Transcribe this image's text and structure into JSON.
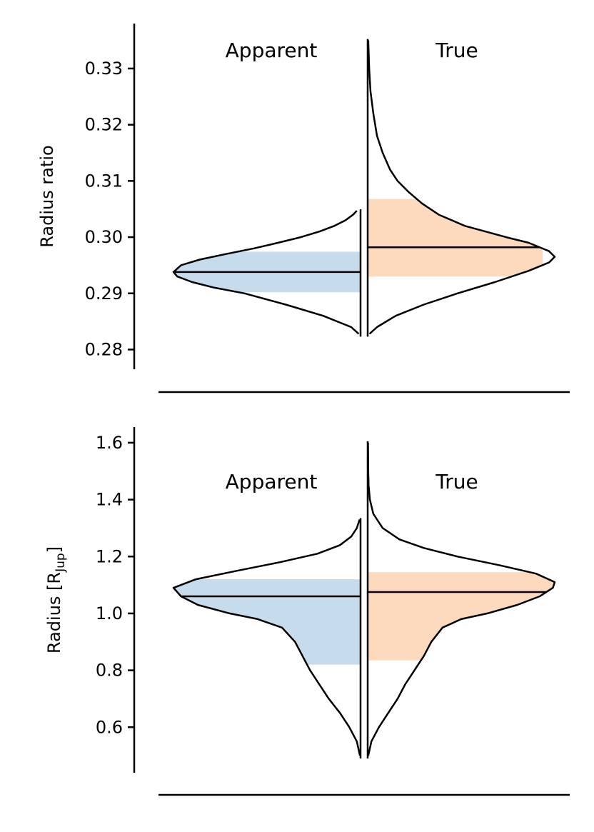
{
  "chart_data": [
    {
      "type": "violin",
      "ylabel": "Radius ratio",
      "ylim": [
        0.2765,
        0.338
      ],
      "yticks": [
        0.28,
        0.29,
        0.3,
        0.31,
        0.32,
        0.33
      ],
      "ytick_labels": [
        "0.28",
        "0.29",
        "0.30",
        "0.31",
        "0.32",
        "0.33"
      ],
      "series": [
        {
          "name": "Apparent",
          "color": "#c6dbeb",
          "side": "left",
          "median": 0.2938,
          "interval": [
            0.2902,
            0.2974
          ],
          "range": [
            0.2828,
            0.3047
          ],
          "density": [
            [
              0.2828,
              0.01
            ],
            [
              0.284,
              0.05
            ],
            [
              0.286,
              0.2
            ],
            [
              0.288,
              0.4
            ],
            [
              0.29,
              0.62
            ],
            [
              0.291,
              0.78
            ],
            [
              0.292,
              0.9
            ],
            [
              0.293,
              0.98
            ],
            [
              0.2938,
              1.0
            ],
            [
              0.295,
              0.96
            ],
            [
              0.296,
              0.86
            ],
            [
              0.297,
              0.72
            ],
            [
              0.298,
              0.57
            ],
            [
              0.299,
              0.44
            ],
            [
              0.3,
              0.32
            ],
            [
              0.301,
              0.22
            ],
            [
              0.302,
              0.14
            ],
            [
              0.303,
              0.08
            ],
            [
              0.304,
              0.04
            ],
            [
              0.3047,
              0.02
            ]
          ]
        },
        {
          "name": "True",
          "color": "#fdd9bd",
          "side": "right",
          "median": 0.2982,
          "interval": [
            0.293,
            0.3068
          ],
          "range": [
            0.2828,
            0.335
          ],
          "density": [
            [
              0.2828,
              0.01
            ],
            [
              0.284,
              0.05
            ],
            [
              0.286,
              0.15
            ],
            [
              0.288,
              0.3
            ],
            [
              0.29,
              0.48
            ],
            [
              0.292,
              0.68
            ],
            [
              0.294,
              0.86
            ],
            [
              0.2955,
              0.97
            ],
            [
              0.2965,
              1.0
            ],
            [
              0.2975,
              0.97
            ],
            [
              0.299,
              0.86
            ],
            [
              0.3,
              0.74
            ],
            [
              0.302,
              0.52
            ],
            [
              0.304,
              0.38
            ],
            [
              0.306,
              0.29
            ],
            [
              0.308,
              0.22
            ],
            [
              0.31,
              0.16
            ],
            [
              0.312,
              0.12
            ],
            [
              0.315,
              0.08
            ],
            [
              0.318,
              0.05
            ],
            [
              0.322,
              0.03
            ],
            [
              0.326,
              0.015
            ],
            [
              0.33,
              0.008
            ],
            [
              0.335,
              0.003
            ]
          ]
        }
      ]
    },
    {
      "type": "violin",
      "ylabel": "Radius [R",
      "ylabel_sub": "Jup",
      "ylabel_close": "]",
      "ylim": [
        0.44,
        1.655
      ],
      "yticks": [
        0.6,
        0.8,
        1.0,
        1.2,
        1.4,
        1.6
      ],
      "ytick_labels": [
        "0.6",
        "0.8",
        "1.0",
        "1.2",
        "1.4",
        "1.6"
      ],
      "series": [
        {
          "name": "Apparent",
          "color": "#c6dbeb",
          "side": "left",
          "median": 1.06,
          "interval": [
            0.82,
            1.12
          ],
          "range": [
            0.5,
            1.33
          ],
          "density": [
            [
              0.5,
              0.003
            ],
            [
              0.55,
              0.02
            ],
            [
              0.6,
              0.06
            ],
            [
              0.65,
              0.11
            ],
            [
              0.7,
              0.17
            ],
            [
              0.75,
              0.22
            ],
            [
              0.8,
              0.27
            ],
            [
              0.85,
              0.31
            ],
            [
              0.9,
              0.35
            ],
            [
              0.95,
              0.42
            ],
            [
              0.98,
              0.55
            ],
            [
              1.0,
              0.7
            ],
            [
              1.03,
              0.87
            ],
            [
              1.06,
              0.96
            ],
            [
              1.09,
              1.0
            ],
            [
              1.12,
              0.88
            ],
            [
              1.15,
              0.66
            ],
            [
              1.18,
              0.43
            ],
            [
              1.21,
              0.23
            ],
            [
              1.24,
              0.11
            ],
            [
              1.27,
              0.05
            ],
            [
              1.3,
              0.02
            ],
            [
              1.33,
              0.005
            ]
          ]
        },
        {
          "name": "True",
          "color": "#fdd9bd",
          "side": "right",
          "median": 1.075,
          "interval": [
            0.835,
            1.145
          ],
          "range": [
            0.5,
            1.6
          ],
          "density": [
            [
              0.5,
              0.003
            ],
            [
              0.55,
              0.02
            ],
            [
              0.6,
              0.06
            ],
            [
              0.65,
              0.11
            ],
            [
              0.7,
              0.16
            ],
            [
              0.75,
              0.2
            ],
            [
              0.8,
              0.25
            ],
            [
              0.85,
              0.3
            ],
            [
              0.9,
              0.34
            ],
            [
              0.95,
              0.4
            ],
            [
              0.98,
              0.5
            ],
            [
              1.0,
              0.64
            ],
            [
              1.03,
              0.8
            ],
            [
              1.06,
              0.92
            ],
            [
              1.09,
              0.99
            ],
            [
              1.11,
              1.0
            ],
            [
              1.14,
              0.9
            ],
            [
              1.17,
              0.7
            ],
            [
              1.2,
              0.48
            ],
            [
              1.23,
              0.3
            ],
            [
              1.26,
              0.17
            ],
            [
              1.3,
              0.08
            ],
            [
              1.35,
              0.03
            ],
            [
              1.4,
              0.012
            ],
            [
              1.45,
              0.005
            ],
            [
              1.5,
              0.003
            ],
            [
              1.6,
              0.002
            ]
          ]
        }
      ]
    }
  ]
}
